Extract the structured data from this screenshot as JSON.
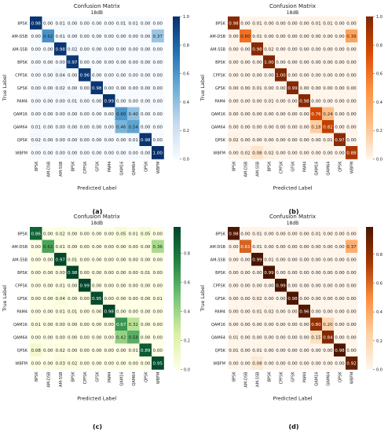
{
  "chart_data": [
    {
      "type": "heatmap",
      "panel_label": "(a)",
      "title": "Confusion Matrix",
      "subtitle": "18dB",
      "xlabel": "Predicted Label",
      "ylabel": "True Label",
      "categories": [
        "8PSK",
        "AM-DSB",
        "AM-SSB",
        "BPSK",
        "CPFSK",
        "GFSK",
        "PAM4",
        "QAM16",
        "QAM64",
        "QPSK",
        "WBFM"
      ],
      "colormap": [
        "#f7fbff",
        "#c6dbef",
        "#6baed6",
        "#2171b5",
        "#08306b"
      ],
      "colorbar_ticks": [
        "0.0",
        "0.2",
        "0.4",
        "0.6",
        "0.8",
        "1.0"
      ],
      "colorbar_max": 1.0,
      "values": [
        [
          "0.98",
          "0.00",
          "0.01",
          "0.00",
          "0.00",
          "0.00",
          "0.00",
          "0.01",
          "0.01",
          "0.00",
          "0.00"
        ],
        [
          "0.00",
          "0.62",
          "0.01",
          "0.00",
          "0.00",
          "0.00",
          "0.00",
          "0.00",
          "0.00",
          "0.00",
          "0.37"
        ],
        [
          "0.00",
          "0.00",
          "0.98",
          "0.02",
          "0.00",
          "0.00",
          "0.00",
          "0.00",
          "0.00",
          "0.00",
          "0.00"
        ],
        [
          "0.00",
          "0.00",
          "0.00",
          "0.97",
          "0.00",
          "0.00",
          "0.00",
          "0.00",
          "0.00",
          "0.00",
          "0.00"
        ],
        [
          "0.00",
          "0.00",
          "0.04",
          "0.00",
          "0.96",
          "0.00",
          "0.00",
          "0.00",
          "0.00",
          "0.00",
          "0.00"
        ],
        [
          "0.00",
          "0.00",
          "0.02",
          "0.00",
          "0.00",
          "0.98",
          "0.00",
          "0.00",
          "0.00",
          "0.00",
          "0.00"
        ],
        [
          "0.00",
          "0.00",
          "0.00",
          "0.01",
          "0.00",
          "0.00",
          "0.99",
          "0.00",
          "0.00",
          "0.00",
          "0.00"
        ],
        [
          "0.00",
          "0.00",
          "0.00",
          "0.00",
          "0.00",
          "0.00",
          "0.00",
          "0.60",
          "0.40",
          "0.00",
          "0.00"
        ],
        [
          "0.01",
          "0.00",
          "0.00",
          "0.00",
          "0.00",
          "0.00",
          "0.00",
          "0.46",
          "0.54",
          "0.00",
          "0.00"
        ],
        [
          "0.02",
          "0.00",
          "0.00",
          "0.00",
          "0.00",
          "0.00",
          "0.00",
          "0.00",
          "0.01",
          "0.98",
          "0.00"
        ],
        [
          "0.00",
          "0.00",
          "0.00",
          "0.00",
          "0.00",
          "0.00",
          "0.00",
          "0.00",
          "0.00",
          "0.00",
          "1.00"
        ]
      ]
    },
    {
      "type": "heatmap",
      "panel_label": "(b)",
      "title": "Confusion Matrix",
      "subtitle": "18dB",
      "xlabel": "Predicted Label",
      "ylabel": "True Label",
      "categories": [
        "8PSK",
        "AM-DSB",
        "AM-SSB",
        "BPSK",
        "CPFSK",
        "GFSK",
        "PAM4",
        "QAM16",
        "QAM64",
        "QPSK",
        "WBFM"
      ],
      "colormap": [
        "#fff5eb",
        "#fdbe85",
        "#fd8d3c",
        "#d94801",
        "#7f2704"
      ],
      "colorbar_ticks": [
        "0.0",
        "0.2",
        "0.4",
        "0.6",
        "0.8",
        "1.0"
      ],
      "colorbar_max": 1.0,
      "values": [
        [
          "0.98",
          "0.00",
          "0.01",
          "0.00",
          "0.00",
          "0.00",
          "0.00",
          "0.01",
          "0.01",
          "0.00",
          "0.00"
        ],
        [
          "0.00",
          "0.60",
          "0.01",
          "0.00",
          "0.00",
          "0.00",
          "0.00",
          "0.00",
          "0.00",
          "0.00",
          "0.39"
        ],
        [
          "0.00",
          "0.00",
          "0.98",
          "0.02",
          "0.00",
          "0.00",
          "0.00",
          "0.00",
          "0.00",
          "0.00",
          "0.00"
        ],
        [
          "0.00",
          "0.00",
          "0.00",
          "1.00",
          "0.00",
          "0.00",
          "0.00",
          "0.00",
          "0.00",
          "0.00",
          "0.00"
        ],
        [
          "0.00",
          "0.00",
          "0.00",
          "0.00",
          "1.00",
          "0.00",
          "0.00",
          "0.00",
          "0.00",
          "0.00",
          "0.00"
        ],
        [
          "0.00",
          "0.00",
          "0.01",
          "0.00",
          "0.00",
          "0.99",
          "0.00",
          "0.00",
          "0.00",
          "0.00",
          "0.00"
        ],
        [
          "0.00",
          "0.00",
          "0.00",
          "0.01",
          "0.00",
          "0.00",
          "0.98",
          "0.00",
          "0.00",
          "0.00",
          "0.00"
        ],
        [
          "0.00",
          "0.00",
          "0.00",
          "0.00",
          "0.00",
          "0.00",
          "0.00",
          "0.76",
          "0.24",
          "0.00",
          "0.00"
        ],
        [
          "0.00",
          "0.00",
          "0.00",
          "0.00",
          "0.00",
          "0.00",
          "0.00",
          "0.18",
          "0.82",
          "0.00",
          "0.00"
        ],
        [
          "0.02",
          "0.00",
          "0.00",
          "0.00",
          "0.00",
          "0.00",
          "0.00",
          "0.00",
          "0.01",
          "0.97",
          "0.00"
        ],
        [
          "0.00",
          "0.02",
          "0.08",
          "0.02",
          "0.00",
          "0.00",
          "0.00",
          "0.00",
          "0.00",
          "0.00",
          "0.88"
        ]
      ]
    },
    {
      "type": "heatmap",
      "panel_label": "(c)",
      "title": "Confusion Matrix",
      "subtitle": "18dB",
      "xlabel": "Predicted Label",
      "ylabel": "True Label",
      "categories": [
        "8PSK",
        "AM-DSB",
        "AM-SSB",
        "BPSK",
        "CPFSK",
        "GFSK",
        "PAM4",
        "QAM16",
        "QAM64",
        "QPSK",
        "WBFM"
      ],
      "colormap": [
        "#ffffe5",
        "#d9f0a3",
        "#78c679",
        "#238443",
        "#004529"
      ],
      "colorbar_ticks": [
        "0.0",
        "0.2",
        "0.4",
        "0.6",
        "0.8"
      ],
      "colorbar_max": 0.98,
      "values": [
        [
          "0.86",
          "0.00",
          "0.02",
          "0.00",
          "0.00",
          "0.00",
          "0.00",
          "0.05",
          "0.01",
          "0.05",
          "0.00"
        ],
        [
          "0.00",
          "0.62",
          "0.01",
          "0.00",
          "0.00",
          "0.00",
          "0.00",
          "0.00",
          "0.00",
          "0.00",
          "0.36"
        ],
        [
          "0.00",
          "0.00",
          "0.97",
          "0.01",
          "0.00",
          "0.00",
          "0.00",
          "0.00",
          "0.00",
          "0.00",
          "0.00"
        ],
        [
          "0.00",
          "0.00",
          "0.00",
          "0.98",
          "0.00",
          "0.00",
          "0.00",
          "0.00",
          "0.00",
          "0.01",
          "0.00"
        ],
        [
          "0.00",
          "0.00",
          "0.01",
          "0.00",
          "0.99",
          "0.00",
          "0.00",
          "0.00",
          "0.00",
          "0.00",
          "0.00"
        ],
        [
          "0.00",
          "0.00",
          "0.04",
          "0.00",
          "0.00",
          "0.95",
          "0.00",
          "0.00",
          "0.00",
          "0.00",
          "0.01"
        ],
        [
          "0.00",
          "0.00",
          "0.01",
          "0.01",
          "0.00",
          "0.00",
          "0.98",
          "0.00",
          "0.00",
          "0.00",
          "0.00"
        ],
        [
          "0.01",
          "0.00",
          "0.00",
          "0.00",
          "0.00",
          "0.00",
          "0.00",
          "0.67",
          "0.32",
          "0.00",
          "0.00"
        ],
        [
          "0.00",
          "0.00",
          "0.00",
          "0.00",
          "0.00",
          "0.00",
          "0.00",
          "0.42",
          "0.58",
          "0.00",
          "0.00"
        ],
        [
          "0.08",
          "0.00",
          "0.02",
          "0.00",
          "0.00",
          "0.00",
          "0.00",
          "0.00",
          "0.01",
          "0.89",
          "0.00"
        ],
        [
          "0.00",
          "0.00",
          "0.03",
          "0.02",
          "0.00",
          "0.00",
          "0.00",
          "0.00",
          "0.00",
          "0.00",
          "0.95"
        ]
      ]
    },
    {
      "type": "heatmap",
      "panel_label": "(d)",
      "title": "Confusion Matrix",
      "subtitle": "18dB",
      "xlabel": "Predicted Label",
      "ylabel": "True Label",
      "categories": [
        "8PSK",
        "AM-DSB",
        "AM-SSB",
        "BPSK",
        "CPFSK",
        "GFSK",
        "PAM4",
        "QAM16",
        "QAM64",
        "QPSK",
        "WBFM"
      ],
      "colormap": [
        "#fff5eb",
        "#fdd0a2",
        "#fd8d3c",
        "#a63603",
        "#4a1500"
      ],
      "colorbar_ticks": [
        "0.0",
        "0.2",
        "0.4",
        "0.6",
        "0.8"
      ],
      "colorbar_max": 0.99,
      "values": [
        [
          "0.98",
          "0.00",
          "0.01",
          "0.00",
          "0.00",
          "0.00",
          "0.00",
          "0.01",
          "0.00",
          "0.00",
          "0.00"
        ],
        [
          "0.00",
          "0.61",
          "0.01",
          "0.00",
          "0.00",
          "0.00",
          "0.00",
          "0.00",
          "0.00",
          "0.00",
          "0.37"
        ],
        [
          "0.00",
          "0.00",
          "0.99",
          "0.01",
          "0.00",
          "0.00",
          "0.00",
          "0.00",
          "0.00",
          "0.00",
          "0.00"
        ],
        [
          "0.00",
          "0.00",
          "0.00",
          "0.99",
          "0.00",
          "0.00",
          "0.00",
          "0.00",
          "0.00",
          "0.00",
          "0.00"
        ],
        [
          "0.00",
          "0.00",
          "0.00",
          "0.00",
          "0.99",
          "0.00",
          "0.00",
          "0.00",
          "0.00",
          "0.00",
          "0.00"
        ],
        [
          "0.00",
          "0.00",
          "0.02",
          "0.00",
          "0.00",
          "0.98",
          "0.00",
          "0.00",
          "0.00",
          "0.00",
          "0.00"
        ],
        [
          "0.00",
          "0.00",
          "0.01",
          "0.02",
          "0.00",
          "0.00",
          "0.96",
          "0.00",
          "0.00",
          "0.00",
          "0.00"
        ],
        [
          "0.00",
          "0.00",
          "0.00",
          "0.00",
          "0.00",
          "0.00",
          "0.00",
          "0.80",
          "0.20",
          "0.00",
          "0.00"
        ],
        [
          "0.01",
          "0.00",
          "0.00",
          "0.00",
          "0.00",
          "0.00",
          "0.00",
          "0.15",
          "0.84",
          "0.00",
          "0.00"
        ],
        [
          "0.01",
          "0.00",
          "0.01",
          "0.00",
          "0.00",
          "0.00",
          "0.00",
          "0.00",
          "0.00",
          "0.98",
          "0.00"
        ],
        [
          "0.00",
          "0.00",
          "0.08",
          "0.00",
          "0.00",
          "0.00",
          "0.00",
          "0.00",
          "0.00",
          "0.00",
          "0.92"
        ]
      ]
    }
  ]
}
